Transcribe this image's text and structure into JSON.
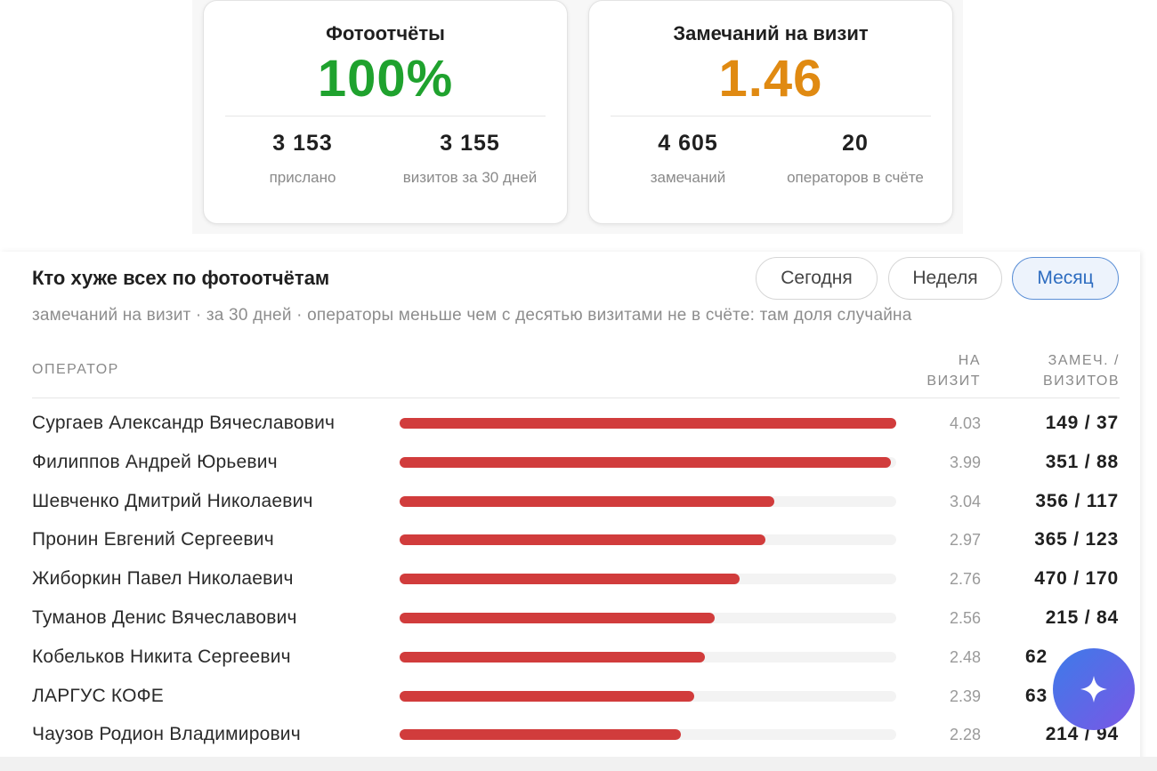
{
  "cards": [
    {
      "title": "Фотоотчёты",
      "value": "100%",
      "color": "#1fa22e",
      "stats": [
        {
          "value": "3 153",
          "label": "прислано"
        },
        {
          "value": "3 155",
          "label": "визитов за 30 дней"
        }
      ]
    },
    {
      "title": "Замечаний на визит",
      "value": "1.46",
      "color": "#e08a12",
      "stats": [
        {
          "value": "4 605",
          "label": "замечаний"
        },
        {
          "value": "20",
          "label": "операторов в счёте"
        }
      ]
    }
  ],
  "panel": {
    "title": "Кто хуже всех по фотоотчётам",
    "subtitle": "замечаний на визит · за 30 дней · операторы меньше чем с десятью визитами не в счёте: там доля случайна",
    "tabs": [
      "Сегодня",
      "Неделя",
      "Месяц"
    ],
    "active_tab": 2,
    "columns": [
      "ОПЕРАТОР",
      "НА ВИЗИТ",
      "ЗАМЕЧ. / ВИЗИТОВ"
    ],
    "rows": [
      {
        "name": "Сургаев Александр Вячеславович",
        "rate": 4.03,
        "counts": "149 / 37"
      },
      {
        "name": "Филиппов Андрей Юрьевич",
        "rate": 3.99,
        "counts": "351 / 88"
      },
      {
        "name": "Шевченко Дмитрий Николаевич",
        "rate": 3.04,
        "counts": "356 / 117"
      },
      {
        "name": "Пронин Евгений Сергеевич",
        "rate": 2.97,
        "counts": "365 / 123"
      },
      {
        "name": "Жиборкин Павел Николаевич",
        "rate": 2.76,
        "counts": "470 / 170"
      },
      {
        "name": "Туманов Денис Вячеславович",
        "rate": 2.56,
        "counts": "215 / 84"
      },
      {
        "name": "Кобельков Никита Сергеевич",
        "rate": 2.48,
        "counts": "62"
      },
      {
        "name": "ЛАРГУС КОФЕ",
        "rate": 2.39,
        "counts": "63"
      },
      {
        "name": "Чаузов Родион Владимирович",
        "rate": 2.28,
        "counts": "214 / 94"
      }
    ]
  }
}
